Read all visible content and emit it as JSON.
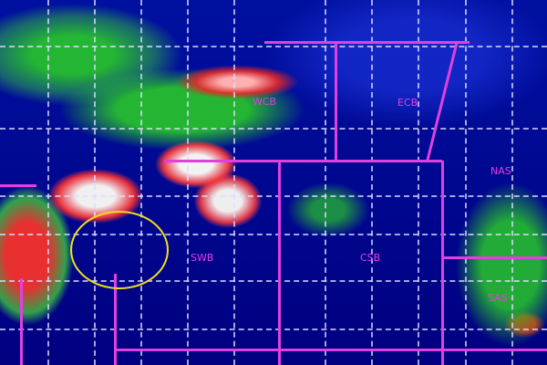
{
  "image": {
    "type": "satellite infrared cloud imagery with region overlays",
    "colors": {
      "boundary": "#e040e0",
      "highlight_circle": "#f0e020",
      "grid": "#dcdcff",
      "ocean": "#000080"
    }
  },
  "regions": [
    {
      "label": "WCB"
    },
    {
      "label": "ECB"
    },
    {
      "label": "NAS"
    },
    {
      "label": "SWB"
    },
    {
      "label": "CSB"
    },
    {
      "label": "SAS"
    }
  ]
}
